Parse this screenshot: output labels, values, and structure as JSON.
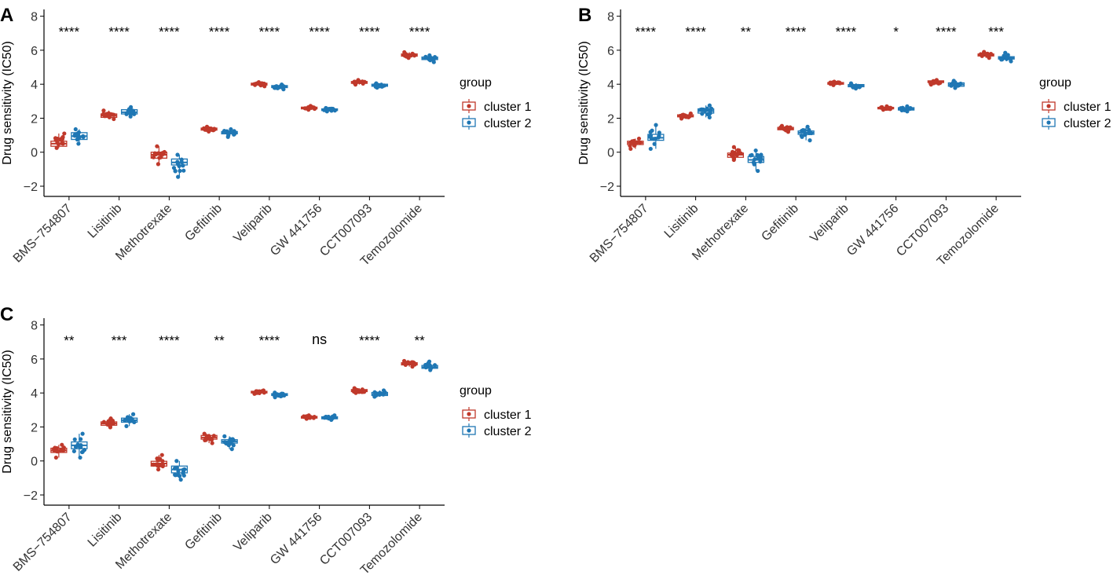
{
  "colors": {
    "cluster1": "#C0392B",
    "cluster2": "#1F77B4"
  },
  "chart_data": [
    {
      "panel": "A",
      "type": "box",
      "title": "",
      "xlabel": "",
      "ylabel": "Drug sensitivity (IC50)",
      "ylim": [
        -2.6,
        8.4
      ],
      "yticks": [
        -2,
        0,
        2,
        4,
        6,
        8
      ],
      "legend": {
        "title": "group",
        "position": "right",
        "entries": [
          "cluster 1",
          "cluster 2"
        ]
      },
      "categories": [
        "BMS−754807",
        "Lisitinib",
        "Methotrexate",
        "Gefitinib",
        "Veliparib",
        "GW 441756",
        "CCT007093",
        "Temozolomide"
      ],
      "significance": [
        "****",
        "****",
        "****",
        "****",
        "****",
        "****",
        "****",
        "****"
      ],
      "series": [
        {
          "name": "cluster 1",
          "q1": [
            0.35,
            2.05,
            -0.35,
            1.3,
            3.95,
            2.55,
            4.05,
            5.65
          ],
          "median": [
            0.5,
            2.15,
            -0.15,
            1.35,
            4.0,
            2.6,
            4.1,
            5.7
          ],
          "q3": [
            0.65,
            2.25,
            0.0,
            1.42,
            4.06,
            2.65,
            4.16,
            5.78
          ],
          "min": [
            0.25,
            1.95,
            -0.7,
            1.22,
            3.88,
            2.5,
            3.98,
            5.55
          ],
          "max": [
            1.1,
            2.45,
            0.35,
            1.5,
            4.12,
            2.72,
            4.25,
            5.88
          ]
        },
        {
          "name": "cluster 2",
          "q1": [
            0.75,
            2.25,
            -0.75,
            1.08,
            3.8,
            2.45,
            3.88,
            5.45
          ],
          "median": [
            0.95,
            2.35,
            -0.6,
            1.15,
            3.85,
            2.5,
            3.93,
            5.52
          ],
          "q3": [
            1.15,
            2.5,
            -0.4,
            1.22,
            3.92,
            2.55,
            4.0,
            5.6
          ],
          "min": [
            0.5,
            2.1,
            -1.45,
            0.9,
            3.7,
            2.4,
            3.8,
            5.3
          ],
          "max": [
            1.35,
            2.65,
            -0.15,
            1.35,
            3.98,
            2.6,
            4.05,
            5.7
          ]
        }
      ]
    },
    {
      "panel": "B",
      "type": "box",
      "title": "",
      "xlabel": "",
      "ylabel": "Drug sensitivity (IC50)",
      "ylim": [
        -2.6,
        8.4
      ],
      "yticks": [
        -2,
        0,
        2,
        4,
        6,
        8
      ],
      "legend": {
        "title": "group",
        "position": "right",
        "entries": [
          "cluster 1",
          "cluster 2"
        ]
      },
      "categories": [
        "BMS−754807",
        "Lisitinib",
        "Methotrexate",
        "Gefitinib",
        "Veliparib",
        "GW 441756",
        "CCT007093",
        "Temozolomide"
      ],
      "significance": [
        "****",
        "****",
        "**",
        "****",
        "****",
        "*",
        "****",
        "***"
      ],
      "series": [
        {
          "name": "cluster 1",
          "q1": [
            0.45,
            2.08,
            -0.3,
            1.32,
            4.0,
            2.55,
            4.1,
            5.66
          ],
          "median": [
            0.55,
            2.12,
            -0.15,
            1.38,
            4.05,
            2.6,
            4.15,
            5.72
          ],
          "q3": [
            0.65,
            2.2,
            -0.05,
            1.46,
            4.1,
            2.64,
            4.2,
            5.78
          ],
          "min": [
            0.2,
            1.98,
            -0.45,
            1.2,
            3.95,
            2.5,
            3.98,
            5.55
          ],
          "max": [
            0.8,
            2.28,
            0.3,
            1.55,
            4.15,
            2.7,
            4.25,
            5.9
          ]
        },
        {
          "name": "cluster 2",
          "q1": [
            0.7,
            2.3,
            -0.6,
            1.05,
            3.85,
            2.48,
            3.88,
            5.48
          ],
          "median": [
            0.85,
            2.42,
            -0.45,
            1.15,
            3.92,
            2.55,
            3.98,
            5.55
          ],
          "q3": [
            1.05,
            2.55,
            -0.25,
            1.25,
            3.98,
            2.62,
            4.08,
            5.62
          ],
          "min": [
            0.2,
            2.05,
            -1.1,
            0.7,
            3.75,
            2.4,
            3.78,
            5.35
          ],
          "max": [
            1.6,
            2.75,
            0.1,
            1.5,
            4.05,
            2.7,
            4.2,
            5.85
          ]
        }
      ]
    },
    {
      "panel": "C",
      "type": "box",
      "title": "",
      "xlabel": "",
      "ylabel": "Drug sensitivity (IC50)",
      "ylim": [
        -2.6,
        8.4
      ],
      "yticks": [
        -2,
        0,
        2,
        4,
        6,
        8
      ],
      "legend": {
        "title": "group",
        "position": "right",
        "entries": [
          "cluster 1",
          "cluster 2"
        ]
      },
      "categories": [
        "BMS−754807",
        "Lisitinib",
        "Methotrexate",
        "Gefitinib",
        "Veliparib",
        "GW 441756",
        "CCT007093",
        "Temozolomide"
      ],
      "significance": [
        "**",
        "***",
        "****",
        "**",
        "****",
        "ns",
        "****",
        "**"
      ],
      "series": [
        {
          "name": "cluster 1",
          "q1": [
            0.5,
            2.1,
            -0.3,
            1.28,
            4.0,
            2.52,
            4.08,
            5.65
          ],
          "median": [
            0.62,
            2.2,
            -0.15,
            1.38,
            4.05,
            2.57,
            4.13,
            5.72
          ],
          "q3": [
            0.75,
            2.3,
            -0.02,
            1.5,
            4.1,
            2.62,
            4.2,
            5.78
          ],
          "min": [
            0.2,
            1.98,
            -0.5,
            1.05,
            3.95,
            2.48,
            4.0,
            5.55
          ],
          "max": [
            0.95,
            2.5,
            0.35,
            1.6,
            4.15,
            2.68,
            4.28,
            5.88
          ]
        },
        {
          "name": "cluster 2",
          "q1": [
            0.72,
            2.28,
            -0.7,
            1.05,
            3.85,
            2.48,
            3.85,
            5.45
          ],
          "median": [
            0.92,
            2.4,
            -0.5,
            1.15,
            3.9,
            2.53,
            3.93,
            5.52
          ],
          "q3": [
            1.12,
            2.52,
            -0.3,
            1.25,
            3.96,
            2.6,
            4.03,
            5.62
          ],
          "min": [
            0.2,
            2.05,
            -1.1,
            0.7,
            3.75,
            2.42,
            3.78,
            5.35
          ],
          "max": [
            1.6,
            2.75,
            0.0,
            1.45,
            4.02,
            2.68,
            4.15,
            5.85
          ]
        }
      ]
    }
  ]
}
